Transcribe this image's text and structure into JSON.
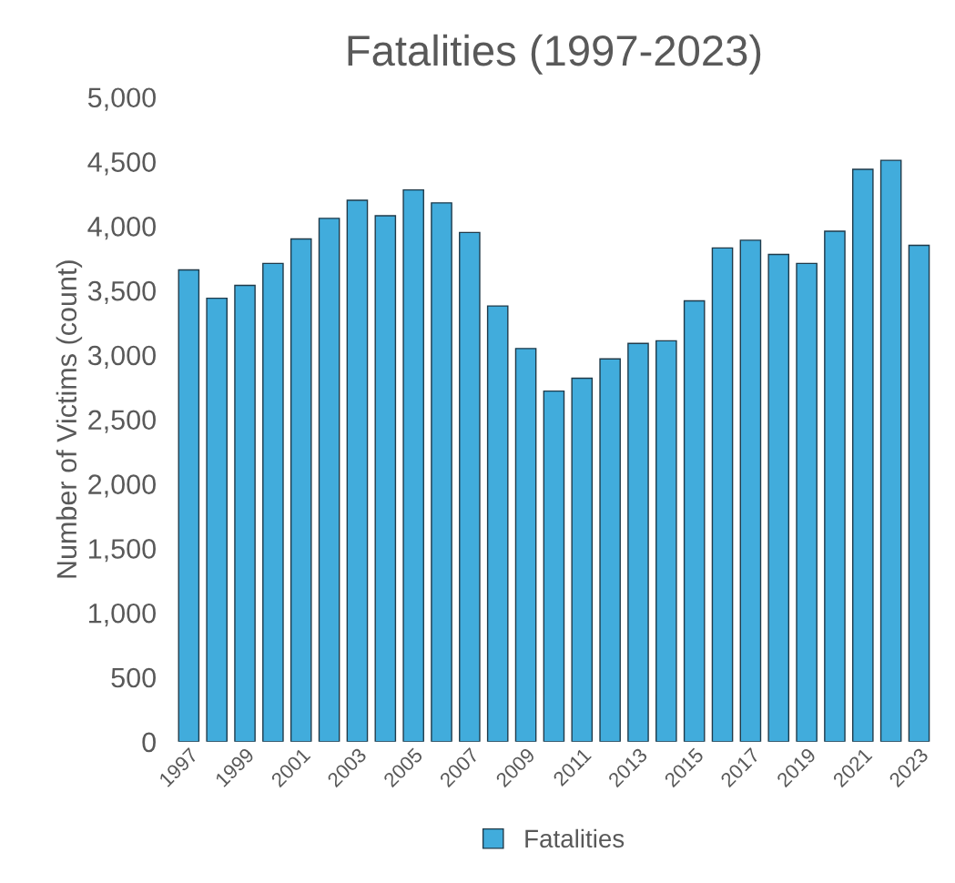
{
  "chart_data": {
    "type": "bar",
    "title": "Fatalities (1997-2023)",
    "ylabel": "Number of Victims (count)",
    "categories": [
      "1997",
      null,
      "1999",
      null,
      "2001",
      null,
      "2003",
      null,
      "2005",
      null,
      "2007",
      null,
      "2009",
      null,
      "2011",
      null,
      "2013",
      null,
      "2015",
      null,
      "2017",
      null,
      "2019",
      null,
      "2021",
      null,
      "2023"
    ],
    "series": [
      {
        "name": "Fatalities",
        "color": "#41acdc",
        "values": [
          3660,
          3440,
          3540,
          3710,
          3900,
          4060,
          4200,
          4080,
          4280,
          4180,
          3950,
          3380,
          3050,
          2720,
          2820,
          2970,
          3090,
          3110,
          3420,
          3830,
          3890,
          3780,
          3710,
          3960,
          4440,
          4510,
          3850
        ]
      }
    ],
    "ylim": [
      0,
      5000
    ],
    "yticks": [
      {
        "value": 0,
        "label": "0"
      },
      {
        "value": 500,
        "label": "500"
      },
      {
        "value": 1000,
        "label": "1,000"
      },
      {
        "value": 1500,
        "label": "1,500"
      },
      {
        "value": 2000,
        "label": "2,000"
      },
      {
        "value": 2500,
        "label": "2,500"
      },
      {
        "value": 3000,
        "label": "3,000"
      },
      {
        "value": 3500,
        "label": "3,500"
      },
      {
        "value": 4000,
        "label": "4,000"
      },
      {
        "value": 4500,
        "label": "4,500"
      },
      {
        "value": 5000,
        "label": "5,000"
      }
    ],
    "legend": "bottom",
    "grid": false
  }
}
